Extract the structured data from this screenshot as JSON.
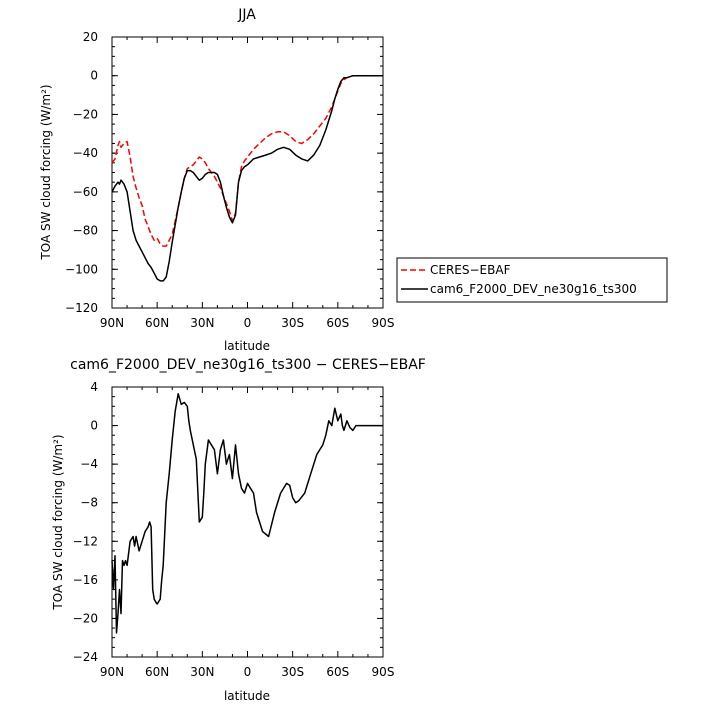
{
  "chart_data": [
    {
      "type": "line",
      "title": "JJA",
      "xlabel": "latitude",
      "ylabel": "TOA SW cloud forcing (W/m²)",
      "xlim": [
        90,
        -90
      ],
      "ylim": [
        -120,
        20
      ],
      "x_ticks": [
        90,
        60,
        30,
        0,
        -30,
        -60,
        -90
      ],
      "x_tick_labels": [
        "90N",
        "60N",
        "30N",
        "0",
        "30S",
        "60S",
        "90S"
      ],
      "y_ticks": [
        20,
        0,
        -20,
        -40,
        -60,
        -80,
        -100,
        -120
      ],
      "y_tick_labels": [
        "20",
        "0",
        "−20",
        "−40",
        "−60",
        "−80",
        "−100",
        "−120"
      ],
      "legend_position": "right",
      "series": [
        {
          "name": "CERES−EBAF",
          "color": "#ff0000",
          "dash": "dashed",
          "x": [
            90,
            88,
            86,
            85,
            84,
            82,
            80,
            78,
            76,
            74,
            72,
            70,
            68,
            66,
            64,
            62,
            60,
            58,
            56,
            54,
            52,
            50,
            48,
            46,
            44,
            42,
            40,
            38,
            36,
            34,
            32,
            30,
            28,
            26,
            24,
            22,
            20,
            18,
            16,
            14,
            12,
            10,
            8,
            6,
            4,
            2,
            0,
            -4,
            -8,
            -12,
            -16,
            -20,
            -24,
            -28,
            -32,
            -36,
            -40,
            -44,
            -48,
            -52,
            -56,
            -58,
            -60,
            -62,
            -64,
            -66,
            -70,
            -75,
            -80,
            -85,
            -90
          ],
          "y": [
            -45,
            -43,
            -36,
            -34,
            -37,
            -35,
            -34,
            -42,
            -52,
            -58,
            -63,
            -67,
            -74,
            -78,
            -82,
            -85,
            -84,
            -87,
            -88,
            -88,
            -85,
            -82,
            -75,
            -68,
            -60,
            -53,
            -48,
            -47,
            -46,
            -44,
            -42,
            -43,
            -45,
            -48,
            -50,
            -52,
            -55,
            -58,
            -62,
            -66,
            -70,
            -75,
            -71,
            -55,
            -47,
            -44,
            -42,
            -38,
            -35,
            -32,
            -30,
            -29,
            -29,
            -31,
            -34,
            -35,
            -33,
            -30,
            -26,
            -22,
            -16,
            -12,
            -8,
            -4,
            -2,
            -1,
            0,
            0,
            0,
            0,
            0
          ]
        },
        {
          "name": "cam6_F2000_DEV_ne30g16_ts300",
          "color": "#000000",
          "dash": "solid",
          "x": [
            90,
            88,
            86,
            85,
            84,
            82,
            80,
            78,
            76,
            74,
            72,
            70,
            68,
            66,
            64,
            62,
            60,
            58,
            56,
            54,
            52,
            50,
            48,
            46,
            44,
            42,
            40,
            38,
            36,
            34,
            32,
            30,
            28,
            26,
            24,
            22,
            20,
            18,
            16,
            14,
            12,
            10,
            8,
            6,
            4,
            2,
            0,
            -4,
            -8,
            -12,
            -16,
            -20,
            -24,
            -28,
            -32,
            -36,
            -40,
            -44,
            -48,
            -52,
            -56,
            -58,
            -60,
            -62,
            -64,
            -66,
            -70,
            -75,
            -80,
            -85,
            -90
          ],
          "y": [
            -60,
            -57,
            -55,
            -56,
            -54,
            -56,
            -60,
            -70,
            -80,
            -85,
            -88,
            -91,
            -94,
            -97,
            -99,
            -102,
            -105,
            -106,
            -106,
            -104,
            -96,
            -86,
            -77,
            -68,
            -60,
            -53,
            -49,
            -49,
            -50,
            -52,
            -54,
            -53,
            -51,
            -50,
            -50,
            -50,
            -51,
            -55,
            -62,
            -68,
            -73,
            -76,
            -72,
            -55,
            -49,
            -47,
            -46,
            -43,
            -42,
            -41,
            -40,
            -38,
            -37,
            -38,
            -41,
            -43,
            -44,
            -41,
            -36,
            -28,
            -18,
            -12,
            -7,
            -3,
            -1,
            -1,
            0,
            0,
            0,
            0,
            0
          ]
        }
      ]
    },
    {
      "type": "line",
      "title": "cam6_F2000_DEV_ne30g16_ts300 − CERES−EBAF",
      "xlabel": "latitude",
      "ylabel": "TOA SW cloud forcing (W/m²)",
      "xlim": [
        90,
        -90
      ],
      "ylim": [
        -24,
        4
      ],
      "x_ticks": [
        90,
        60,
        30,
        0,
        -30,
        -60,
        -90
      ],
      "x_tick_labels": [
        "90N",
        "60N",
        "30N",
        "0",
        "30S",
        "60S",
        "90S"
      ],
      "y_ticks": [
        4,
        0,
        -4,
        -8,
        -12,
        -16,
        -20,
        -24
      ],
      "y_tick_labels": [
        "4",
        "0",
        "−4",
        "−8",
        "−12",
        "−16",
        "−20",
        "−24"
      ],
      "series": [
        {
          "name": "",
          "color": "#000000",
          "dash": "solid",
          "x": [
            90,
            89,
            88,
            87,
            86,
            85,
            84,
            83,
            82,
            81,
            80,
            78,
            76,
            75,
            74,
            72,
            70,
            68,
            66,
            65,
            64,
            63,
            62,
            61,
            60,
            58,
            57,
            56,
            54,
            52,
            50,
            48,
            46,
            44,
            42,
            40,
            39,
            38,
            36,
            34,
            32,
            30,
            29,
            28,
            26,
            24,
            22,
            20,
            18,
            16,
            14,
            12,
            10,
            8,
            6,
            4,
            2,
            0,
            -2,
            -4,
            -6,
            -10,
            -14,
            -18,
            -22,
            -26,
            -28,
            -30,
            -32,
            -34,
            -38,
            -42,
            -46,
            -50,
            -52,
            -54,
            -56,
            -58,
            -60,
            -62,
            -63,
            -64,
            -65,
            -66,
            -68,
            -70,
            -72,
            -74,
            -76,
            -78,
            -80,
            -84,
            -90
          ],
          "y": [
            -14,
            -17,
            -13.5,
            -21.5,
            -19.5,
            -17,
            -19.5,
            -14,
            -14.5,
            -14,
            -14.5,
            -12,
            -11.5,
            -12.5,
            -11.5,
            -13,
            -12,
            -11,
            -10.5,
            -10,
            -10.5,
            -17,
            -18,
            -18.3,
            -18.5,
            -18,
            -16,
            -14.5,
            -8,
            -5,
            -1.5,
            1.5,
            3.3,
            2.2,
            2.4,
            2,
            0.5,
            -0.5,
            -2,
            -3.5,
            -10,
            -9.5,
            -7,
            -4,
            -1.5,
            -2,
            -2.5,
            -5,
            -2.5,
            -1.5,
            -4,
            -3,
            -5.5,
            -2,
            -5,
            -6.5,
            -7,
            -6,
            -6.5,
            -7,
            -9,
            -11,
            -11.5,
            -9,
            -7,
            -6,
            -6.2,
            -7.5,
            -8,
            -7.8,
            -7,
            -5,
            -3,
            -2,
            -1,
            0.5,
            0,
            1.8,
            0.5,
            1.2,
            0,
            -0.5,
            0,
            0.5,
            -0.2,
            -0.5,
            0,
            0,
            0,
            0,
            0,
            0,
            0
          ]
        }
      ]
    }
  ]
}
